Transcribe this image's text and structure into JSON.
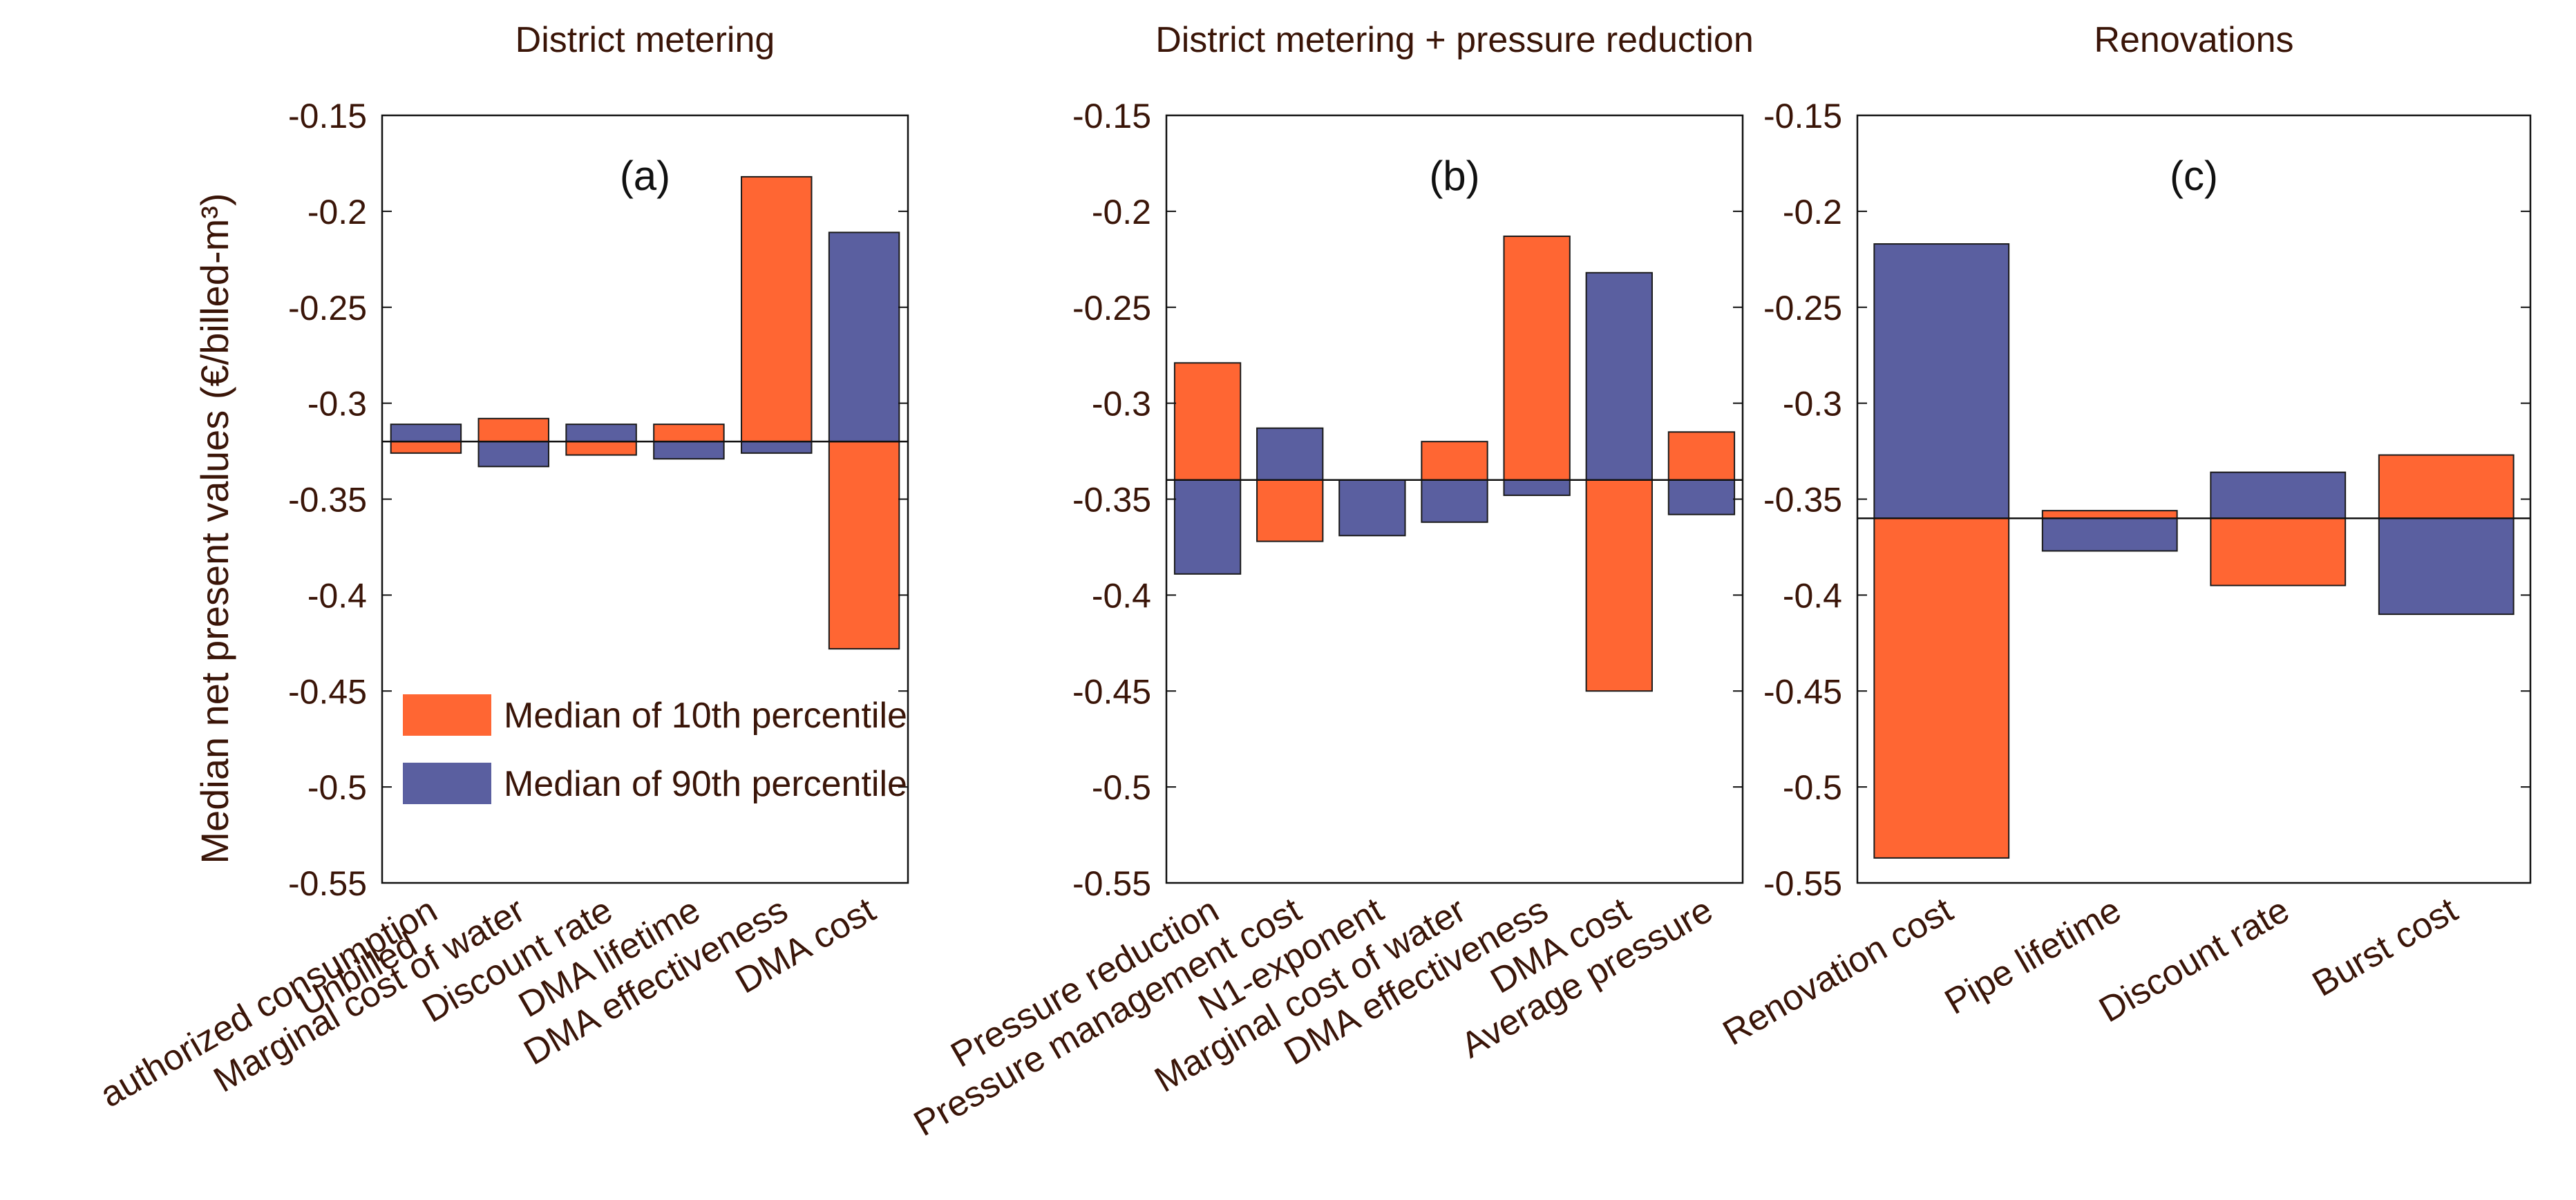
{
  "chart_data": {
    "type": "bar",
    "subtype": "tornado",
    "ylabel": "Median net present values (€/billed-m³)",
    "ylim": [
      -0.55,
      -0.15
    ],
    "yticks": [
      -0.15,
      -0.2,
      -0.25,
      -0.3,
      -0.35,
      -0.4,
      -0.45,
      -0.5,
      -0.55
    ],
    "ytick_labels": [
      "-0.15",
      "-0.2",
      "-0.25",
      "-0.3",
      "-0.35",
      "-0.4",
      "-0.45",
      "-0.5",
      "-0.55"
    ],
    "legend": {
      "placement": "lower-left of panel (a)",
      "entries": [
        {
          "label": "Median of 10th percentile",
          "color": "#FF6633"
        },
        {
          "label": "Median of 90th percentile",
          "color": "#5A5FA0"
        }
      ]
    },
    "panels": [
      {
        "title": "District metering",
        "label": "(a)",
        "baseline": -0.32,
        "categories": [
          [
            "Unbilled",
            "authorized consumption"
          ],
          [
            "Marginal cost of water"
          ],
          [
            "Discount rate"
          ],
          [
            "DMA lifetime"
          ],
          [
            "DMA effectiveness"
          ],
          [
            "DMA cost"
          ]
        ],
        "series": [
          {
            "name": "Median of 10th percentile",
            "values": [
              -0.326,
              -0.308,
              -0.327,
              -0.311,
              -0.182,
              -0.428
            ]
          },
          {
            "name": "Median of 90th percentile",
            "values": [
              -0.311,
              -0.333,
              -0.311,
              -0.329,
              -0.326,
              -0.211
            ]
          }
        ]
      },
      {
        "title": "District metering + pressure reduction",
        "label": "(b)",
        "baseline": -0.34,
        "categories": [
          [
            "Pressure reduction"
          ],
          [
            "Pressure management cost"
          ],
          [
            "N1-exponent"
          ],
          [
            "Marginal cost of water"
          ],
          [
            "DMA effectiveness"
          ],
          [
            "DMA cost"
          ],
          [
            "Average pressure"
          ]
        ],
        "series": [
          {
            "name": "Median of 10th percentile",
            "values": [
              -0.279,
              -0.372,
              -0.34,
              -0.32,
              -0.213,
              -0.45,
              -0.315
            ]
          },
          {
            "name": "Median of 90th percentile",
            "values": [
              -0.389,
              -0.313,
              -0.369,
              -0.362,
              -0.348,
              -0.232,
              -0.358
            ]
          }
        ]
      },
      {
        "title": "Renovations",
        "label": "(c)",
        "baseline": -0.36,
        "categories": [
          [
            "Renovation cost"
          ],
          [
            "Pipe lifetime"
          ],
          [
            "Discount rate"
          ],
          [
            "Burst cost"
          ]
        ],
        "series": [
          {
            "name": "Median of 10th percentile",
            "values": [
              -0.537,
              -0.356,
              -0.395,
              -0.327
            ]
          },
          {
            "name": "Median of 90th percentile",
            "values": [
              -0.217,
              -0.377,
              -0.336,
              -0.41
            ]
          }
        ]
      }
    ]
  }
}
